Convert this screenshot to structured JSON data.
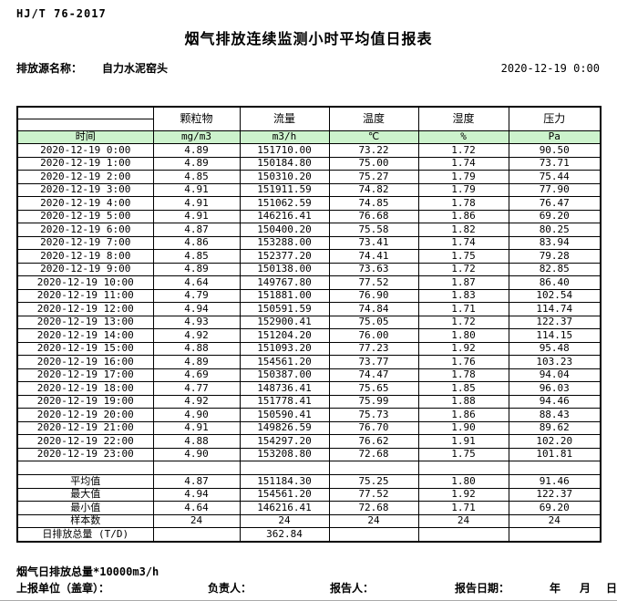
{
  "header": {
    "standard": "HJ/T 76-2017",
    "title": "烟气排放连续监测小时平均值日报表",
    "source_label": "排放源名称：",
    "source_name": "自力水泥窑头",
    "datetime": "2020-12-19 0:00"
  },
  "table": {
    "time_label": "时间",
    "columns": [
      "",
      "颗粒物",
      "流量",
      "温度",
      "湿度",
      "压力"
    ],
    "units": [
      "mg/m3",
      "m3/h",
      "℃",
      "%",
      "Pa"
    ],
    "units_row_bg": "#ccf2cc",
    "rows": [
      {
        "time": "2020-12-19 0:00",
        "values": [
          "4.89",
          "151710.00",
          "73.22",
          "1.72",
          "90.50"
        ]
      },
      {
        "time": "2020-12-19 1:00",
        "values": [
          "4.89",
          "150184.80",
          "75.00",
          "1.74",
          "73.71"
        ]
      },
      {
        "time": "2020-12-19 2:00",
        "values": [
          "4.85",
          "150310.20",
          "75.27",
          "1.79",
          "75.44"
        ]
      },
      {
        "time": "2020-12-19 3:00",
        "values": [
          "4.91",
          "151911.59",
          "74.82",
          "1.79",
          "77.90"
        ]
      },
      {
        "time": "2020-12-19 4:00",
        "values": [
          "4.91",
          "151062.59",
          "74.85",
          "1.78",
          "76.47"
        ]
      },
      {
        "time": "2020-12-19 5:00",
        "values": [
          "4.91",
          "146216.41",
          "76.68",
          "1.86",
          "69.20"
        ]
      },
      {
        "time": "2020-12-19 6:00",
        "values": [
          "4.87",
          "150400.20",
          "75.58",
          "1.82",
          "80.25"
        ]
      },
      {
        "time": "2020-12-19 7:00",
        "values": [
          "4.86",
          "153288.00",
          "73.41",
          "1.74",
          "83.94"
        ]
      },
      {
        "time": "2020-12-19 8:00",
        "values": [
          "4.85",
          "152377.20",
          "74.41",
          "1.75",
          "79.28"
        ]
      },
      {
        "time": "2020-12-19 9:00",
        "values": [
          "4.89",
          "150138.00",
          "73.63",
          "1.72",
          "82.85"
        ]
      },
      {
        "time": "2020-12-19 10:00",
        "values": [
          "4.64",
          "149767.80",
          "77.52",
          "1.87",
          "86.40"
        ]
      },
      {
        "time": "2020-12-19 11:00",
        "values": [
          "4.79",
          "151881.00",
          "76.90",
          "1.83",
          "102.54"
        ]
      },
      {
        "time": "2020-12-19 12:00",
        "values": [
          "4.94",
          "150591.59",
          "74.84",
          "1.71",
          "114.74"
        ]
      },
      {
        "time": "2020-12-19 13:00",
        "values": [
          "4.93",
          "152900.41",
          "75.05",
          "1.72",
          "122.37"
        ]
      },
      {
        "time": "2020-12-19 14:00",
        "values": [
          "4.92",
          "151204.20",
          "76.00",
          "1.80",
          "114.15"
        ]
      },
      {
        "time": "2020-12-19 15:00",
        "values": [
          "4.88",
          "151093.20",
          "77.23",
          "1.92",
          "95.48"
        ]
      },
      {
        "time": "2020-12-19 16:00",
        "values": [
          "4.89",
          "154561.20",
          "73.77",
          "1.76",
          "103.23"
        ]
      },
      {
        "time": "2020-12-19 17:00",
        "values": [
          "4.69",
          "150387.00",
          "74.47",
          "1.78",
          "94.04"
        ]
      },
      {
        "time": "2020-12-19 18:00",
        "values": [
          "4.77",
          "148736.41",
          "75.65",
          "1.85",
          "96.03"
        ]
      },
      {
        "time": "2020-12-19 19:00",
        "values": [
          "4.92",
          "151778.41",
          "75.99",
          "1.88",
          "94.46"
        ]
      },
      {
        "time": "2020-12-19 20:00",
        "values": [
          "4.90",
          "150590.41",
          "75.73",
          "1.86",
          "88.43"
        ]
      },
      {
        "time": "2020-12-19 21:00",
        "values": [
          "4.91",
          "149826.59",
          "76.70",
          "1.90",
          "89.62"
        ]
      },
      {
        "time": "2020-12-19 22:00",
        "values": [
          "4.88",
          "154297.20",
          "76.62",
          "1.91",
          "102.20"
        ]
      },
      {
        "time": "2020-12-19 23:00",
        "values": [
          "4.90",
          "153208.80",
          "72.68",
          "1.75",
          "101.81"
        ]
      }
    ],
    "summary": [
      {
        "label": "",
        "blank": true,
        "values": [
          "",
          "",
          "",
          "",
          ""
        ]
      },
      {
        "label": "平均值",
        "values": [
          "4.87",
          "151184.30",
          "75.25",
          "1.80",
          "91.46"
        ]
      },
      {
        "label": "最大值",
        "values": [
          "4.94",
          "154561.20",
          "77.52",
          "1.92",
          "122.37"
        ]
      },
      {
        "label": "最小值",
        "values": [
          "4.64",
          "146216.41",
          "72.68",
          "1.71",
          "69.20"
        ]
      },
      {
        "label": "样本数",
        "values": [
          "24",
          "24",
          "24",
          "24",
          "24"
        ]
      },
      {
        "label": "日排放总量 (T/D)",
        "values": [
          "",
          "362.84",
          "",
          "",
          ""
        ]
      }
    ]
  },
  "footer": {
    "note": "烟气日排放总量*10000m3/h",
    "report_unit_label": "上报单位（盖章）：",
    "responsible_label": "负责人：",
    "reporter_label": "报告人：",
    "report_date_label": "报告日期：",
    "year_label": "年",
    "month_label": "月",
    "day_label": "日"
  }
}
